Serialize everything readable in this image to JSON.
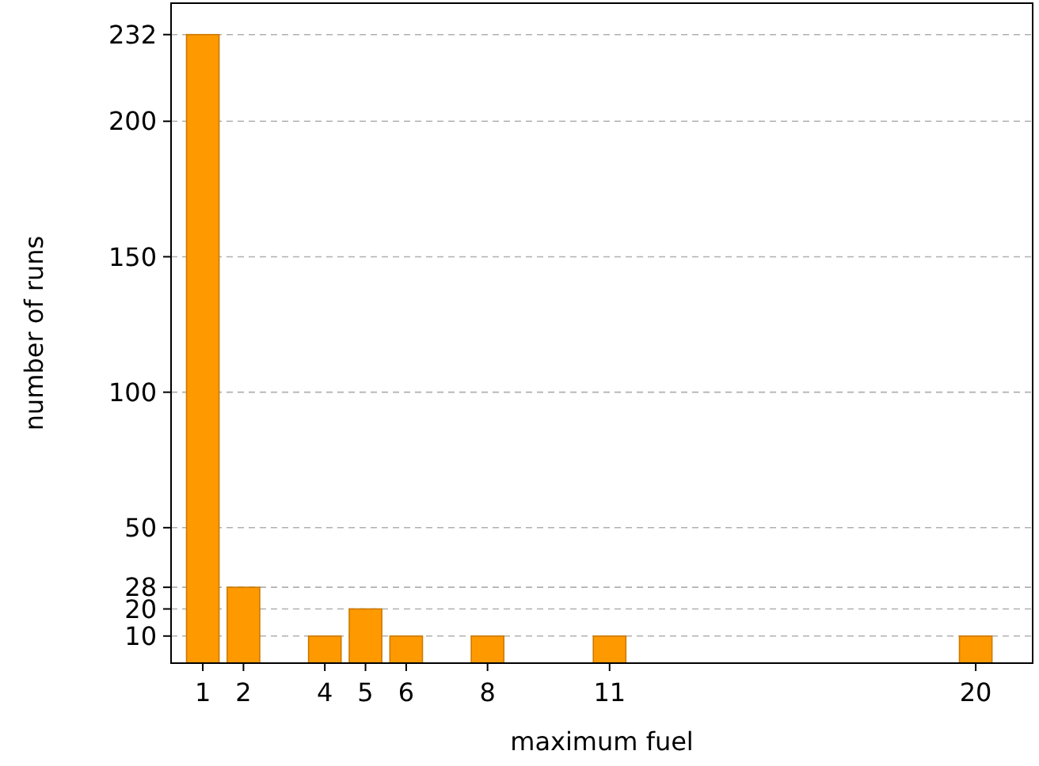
{
  "chart_data": {
    "type": "bar",
    "xlabel": "maximum fuel",
    "ylabel": "number of runs",
    "x": [
      1,
      2,
      4,
      5,
      6,
      8,
      11,
      20
    ],
    "values": [
      232,
      28,
      10,
      20,
      10,
      10,
      10,
      10
    ],
    "color": "#ff9900",
    "xlim": [
      0.22,
      21.4
    ],
    "xticks": [
      1,
      2,
      4,
      5,
      6,
      8,
      11,
      20
    ],
    "ylim": [
      0,
      243.6
    ],
    "yticks": [
      10,
      20,
      28,
      50,
      100,
      150,
      200,
      232
    ],
    "grid": "y"
  }
}
